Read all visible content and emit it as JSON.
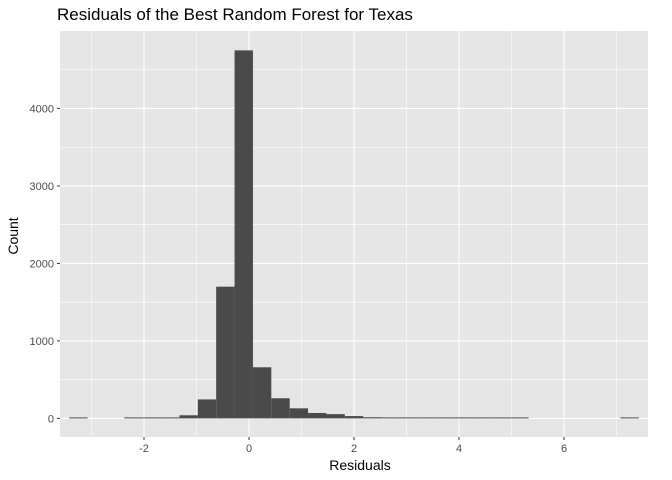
{
  "chart_data": {
    "type": "bar",
    "title": "Residuals of the Best Random Forest for Texas",
    "xlabel": "Residuals",
    "ylabel": "Count",
    "xlim": [
      -3.6,
      7.6
    ],
    "ylim": [
      -240,
      5000
    ],
    "x_ticks": [
      -2,
      0,
      2,
      4,
      6
    ],
    "x_tick_labels": [
      "-2",
      "0",
      "2",
      "4",
      "6"
    ],
    "y_ticks": [
      0,
      1000,
      2000,
      3000,
      4000
    ],
    "y_tick_labels": [
      "0",
      "1000",
      "2000",
      "3000",
      "4000"
    ],
    "grid": true,
    "bin_width": 0.35,
    "bin_centers": [
      -3.25,
      -2.9,
      -2.55,
      -2.2,
      -1.85,
      -1.5,
      -1.15,
      -0.8,
      -0.45,
      -0.1,
      0.25,
      0.6,
      0.95,
      1.3,
      1.65,
      2.0,
      2.35,
      2.7,
      3.05,
      3.4,
      3.75,
      4.1,
      4.45,
      4.8,
      5.15,
      5.5,
      5.85,
      6.2,
      6.55,
      6.9,
      7.25
    ],
    "values": [
      2,
      0,
      0,
      2,
      5,
      12,
      40,
      245,
      1700,
      4750,
      660,
      260,
      130,
      70,
      55,
      30,
      15,
      8,
      5,
      5,
      4,
      3,
      3,
      2,
      2,
      0,
      0,
      0,
      0,
      0,
      2
    ],
    "bar_color": "#4a4a4a",
    "panel_color": "#e5e5e5",
    "grid_color": "#ffffff"
  }
}
